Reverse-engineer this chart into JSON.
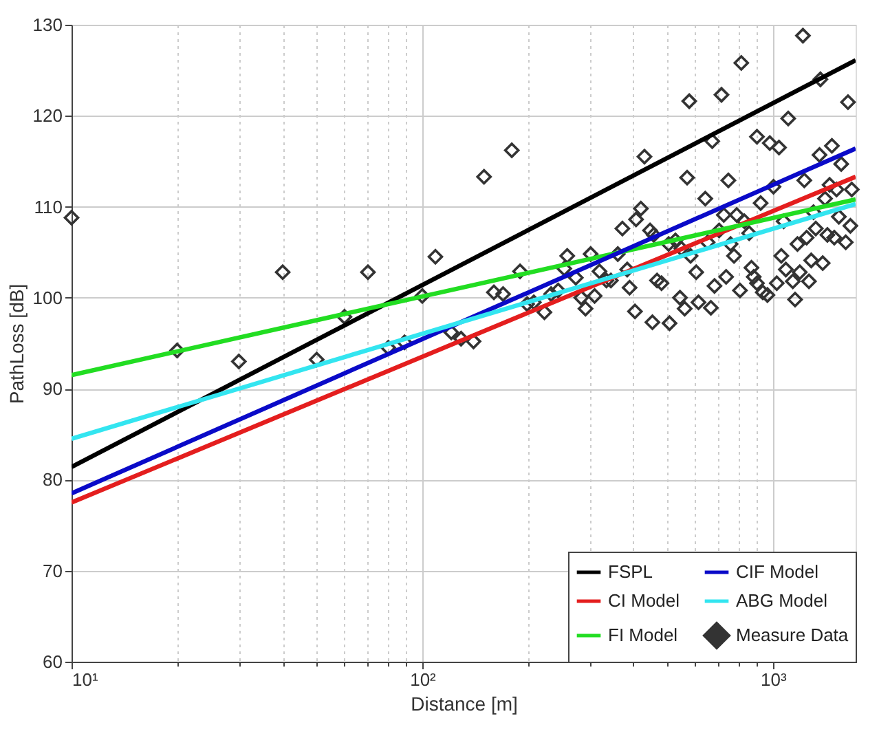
{
  "chart_data": {
    "type": "line",
    "xlabel": "Distance [m]",
    "ylabel": "PathLoss [dB]",
    "log": "x",
    "grid": true,
    "legend": "bottom right",
    "xlim": [
      10,
      1720
    ],
    "ylim": [
      60,
      130
    ],
    "yticks": [
      60,
      70,
      80,
      90,
      100,
      110,
      120,
      130
    ],
    "xticks": [
      {
        "value": 10,
        "label": "10¹"
      },
      {
        "value": 20,
        "label": null
      },
      {
        "value": 30,
        "label": null
      },
      {
        "value": 40,
        "label": null
      },
      {
        "value": 50,
        "label": null
      },
      {
        "value": 60,
        "label": null
      },
      {
        "value": 70,
        "label": null
      },
      {
        "value": 80,
        "label": null
      },
      {
        "value": 90,
        "label": null
      },
      {
        "value": 100,
        "label": "10²"
      },
      {
        "value": 200,
        "label": null
      },
      {
        "value": 300,
        "label": null
      },
      {
        "value": 400,
        "label": null
      },
      {
        "value": 500,
        "label": null
      },
      {
        "value": 600,
        "label": null
      },
      {
        "value": 700,
        "label": null
      },
      {
        "value": 800,
        "label": null
      },
      {
        "value": 900,
        "label": null
      },
      {
        "value": 1000,
        "label": "10³"
      }
    ],
    "series": [
      {
        "name": "FSPL",
        "color": "#000000",
        "x": [
          10,
          1720
        ],
        "values": [
          81.4,
          126.1
        ]
      },
      {
        "name": "CI Model",
        "color": "#e41e1e",
        "x": [
          10,
          1720
        ],
        "values": [
          77.5,
          113.3
        ]
      },
      {
        "name": "FI Model",
        "color": "#22dd22",
        "x": [
          10,
          1720
        ],
        "values": [
          91.5,
          110.8
        ]
      },
      {
        "name": "CIF Model",
        "color": "#0a0ac8",
        "x": [
          10,
          1720
        ],
        "values": [
          78.5,
          116.4
        ]
      },
      {
        "name": "ABG Model",
        "color": "#33e5f0",
        "x": [
          10,
          1720
        ],
        "values": [
          84.5,
          110.3
        ]
      },
      {
        "name": "Measure Data",
        "type": "scatter",
        "marker": "diamond",
        "color": "#333333",
        "x": [
          10,
          20,
          30,
          40,
          50,
          60,
          70,
          80,
          89,
          100,
          109,
          150,
          180,
          160,
          170,
          190,
          121,
          129,
          140,
          199,
          208,
          223,
          233,
          244,
          259,
          254,
          274,
          284,
          292,
          302,
          310,
          320,
          335,
          345,
          361,
          372,
          384,
          390,
          404,
          407,
          420,
          430,
          446,
          457,
          453,
          467,
          481,
          504,
          507,
          527,
          543,
          548,
          560,
          569,
          577,
          582,
          604,
          613,
          641,
          651,
          665,
          671,
          681,
          702,
          713,
          724,
          735,
          746,
          757,
          774,
          788,
          805,
          812,
          829,
          855,
          868,
          881,
          900,
          900,
          922,
          935,
          964,
          979,
          1003,
          1025,
          1040,
          1056,
          1072,
          1088,
          1105,
          1139,
          1156,
          1174,
          1192,
          1217,
          1228,
          1247,
          1266,
          1285,
          1304,
          1324,
          1357,
          1365,
          1386,
          1407,
          1429,
          1450,
          1472,
          1495,
          1518,
          1541,
          1565,
          1612,
          1636,
          1662,
          1677
        ],
        "values": [
          108.8,
          94.2,
          93.0,
          102.8,
          93.2,
          97.9,
          102.8,
          94.5,
          95.1,
          100.2,
          104.5,
          113.3,
          116.2,
          100.6,
          100.4,
          102.9,
          96.2,
          95.5,
          95.2,
          99.3,
          99.5,
          98.4,
          100.4,
          100.8,
          104.6,
          103.2,
          102.2,
          100.0,
          98.8,
          104.8,
          100.2,
          102.9,
          101.9,
          101.9,
          104.8,
          107.6,
          103.1,
          101.1,
          98.5,
          108.6,
          109.8,
          115.5,
          107.4,
          106.9,
          97.3,
          101.9,
          101.6,
          105.9,
          97.2,
          106.3,
          100.0,
          105.4,
          98.8,
          113.2,
          121.6,
          104.6,
          102.8,
          99.5,
          110.9,
          106.1,
          98.9,
          117.2,
          101.3,
          107.4,
          122.3,
          109.1,
          102.3,
          112.9,
          105.9,
          104.6,
          109.1,
          100.8,
          125.8,
          108.4,
          107.1,
          103.3,
          102.3,
          117.7,
          101.6,
          110.4,
          100.6,
          100.3,
          117.0,
          112.2,
          101.6,
          116.5,
          104.6,
          108.4,
          103.1,
          119.7,
          101.8,
          99.8,
          105.9,
          102.8,
          128.8,
          112.9,
          106.6,
          101.8,
          104.1,
          109.4,
          107.6,
          115.7,
          124.0,
          103.8,
          110.9,
          106.9,
          112.4,
          116.7,
          106.6,
          111.9,
          108.9,
          114.7,
          106.1,
          121.5,
          107.9,
          111.9
        ]
      }
    ]
  }
}
